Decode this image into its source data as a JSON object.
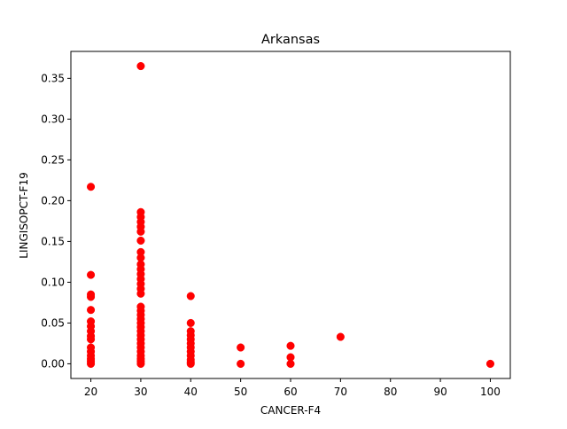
{
  "chart_data": {
    "type": "scatter",
    "title": "Arkansas",
    "xlabel": "CANCER-F4",
    "ylabel": "LINGISOPCT-F19",
    "xlim": [
      16,
      104
    ],
    "ylim": [
      -0.018,
      0.383
    ],
    "grid": false,
    "xticks": [
      20,
      30,
      40,
      50,
      60,
      70,
      80,
      90,
      100
    ],
    "yticks": [
      0.0,
      0.05,
      0.1,
      0.15,
      0.2,
      0.25,
      0.3,
      0.35
    ],
    "xtick_labels": [
      "20",
      "30",
      "40",
      "50",
      "60",
      "70",
      "80",
      "90",
      "100"
    ],
    "ytick_labels": [
      "0.00",
      "0.05",
      "0.10",
      "0.15",
      "0.20",
      "0.25",
      "0.30",
      "0.35"
    ],
    "series": [
      {
        "color": "#ff0000",
        "points": [
          [
            20,
            0.217
          ],
          [
            20,
            0.109
          ],
          [
            20,
            0.085
          ],
          [
            20,
            0.082
          ],
          [
            20,
            0.066
          ],
          [
            20,
            0.052
          ],
          [
            20,
            0.046
          ],
          [
            20,
            0.04
          ],
          [
            20,
            0.034
          ],
          [
            20,
            0.03
          ],
          [
            20,
            0.02
          ],
          [
            20,
            0.015
          ],
          [
            20,
            0.01
          ],
          [
            20,
            0.006
          ],
          [
            20,
            0.003
          ],
          [
            20,
            0.0
          ],
          [
            30,
            0.365
          ],
          [
            30,
            0.186
          ],
          [
            30,
            0.18
          ],
          [
            30,
            0.174
          ],
          [
            30,
            0.168
          ],
          [
            30,
            0.162
          ],
          [
            30,
            0.151
          ],
          [
            30,
            0.137
          ],
          [
            30,
            0.13
          ],
          [
            30,
            0.122
          ],
          [
            30,
            0.116
          ],
          [
            30,
            0.11
          ],
          [
            30,
            0.104
          ],
          [
            30,
            0.098
          ],
          [
            30,
            0.092
          ],
          [
            30,
            0.086
          ],
          [
            30,
            0.07
          ],
          [
            30,
            0.065
          ],
          [
            30,
            0.06
          ],
          [
            30,
            0.055
          ],
          [
            30,
            0.05
          ],
          [
            30,
            0.045
          ],
          [
            30,
            0.04
          ],
          [
            30,
            0.035
          ],
          [
            30,
            0.03
          ],
          [
            30,
            0.025
          ],
          [
            30,
            0.02
          ],
          [
            30,
            0.015
          ],
          [
            30,
            0.01
          ],
          [
            30,
            0.006
          ],
          [
            30,
            0.003
          ],
          [
            30,
            0.0
          ],
          [
            40,
            0.083
          ],
          [
            40,
            0.05
          ],
          [
            40,
            0.04
          ],
          [
            40,
            0.035
          ],
          [
            40,
            0.03
          ],
          [
            40,
            0.025
          ],
          [
            40,
            0.02
          ],
          [
            40,
            0.015
          ],
          [
            40,
            0.01
          ],
          [
            40,
            0.005
          ],
          [
            40,
            0.002
          ],
          [
            40,
            0.0
          ],
          [
            50,
            0.02
          ],
          [
            50,
            0.0
          ],
          [
            60,
            0.022
          ],
          [
            60,
            0.008
          ],
          [
            60,
            0.0
          ],
          [
            70,
            0.033
          ],
          [
            100,
            0.0
          ]
        ]
      }
    ]
  }
}
